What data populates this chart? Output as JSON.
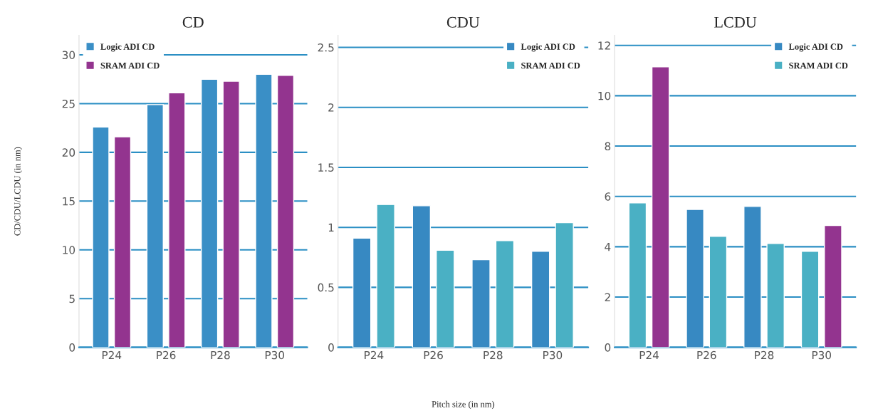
{
  "chart_data": [
    {
      "type": "bar",
      "title": "CD",
      "ylabel": "CD/CDU/LCDU (in nm)",
      "categories": [
        "P24",
        "P26",
        "P28",
        "P30"
      ],
      "series": [
        {
          "name": "Logic ADI CD",
          "color": "#3a8fc6",
          "values": [
            22.6,
            24.9,
            27.5,
            28.0
          ]
        },
        {
          "name": "SRAM ADI CD",
          "color": "#93348f",
          "values": [
            21.6,
            26.1,
            27.3,
            27.9
          ]
        }
      ],
      "ylim": [
        0,
        32
      ],
      "yticks": [
        0,
        5,
        10,
        15,
        20,
        25,
        30
      ],
      "grid": "y",
      "legend": "top left"
    },
    {
      "type": "bar",
      "title": "CDU",
      "xlabel": "Pitch size (in nm)",
      "categories": [
        "P24",
        "P26",
        "P28",
        "P30"
      ],
      "series": [
        {
          "name": "Logic ADI CD",
          "color": "#3789c2",
          "values": [
            0.91,
            1.18,
            0.73,
            0.8
          ]
        },
        {
          "name": "SRAM ADI CD",
          "color": "#4ab0c4",
          "values": [
            1.19,
            0.81,
            0.89,
            1.04
          ]
        }
      ],
      "ylim": [
        0,
        2.6
      ],
      "yticks": [
        0,
        0.5,
        1,
        1.5,
        2,
        2.5
      ],
      "grid": "y",
      "legend": "top right"
    },
    {
      "type": "bar",
      "title": "LCDU",
      "categories": [
        "P24",
        "P26",
        "P28",
        "P30"
      ],
      "series": [
        {
          "name": "Logic ADI CD",
          "color": "#3789c2",
          "colors": [
            "#4ab0c4",
            "#3789c2",
            "#3789c2",
            "#4ab0c4"
          ],
          "values": [
            5.74,
            5.48,
            5.6,
            3.82
          ]
        },
        {
          "name": "SRAM ADI CD",
          "color": "#4ab0c4",
          "colors": [
            "#93348f",
            "#4ab0c4",
            "#4ab0c4",
            "#93348f"
          ],
          "values": [
            11.15,
            4.41,
            4.13,
            4.84
          ]
        }
      ],
      "ylim": [
        0,
        12.4
      ],
      "yticks": [
        0,
        2,
        4,
        6,
        8,
        10,
        12
      ],
      "grid": "y",
      "legend": "top right"
    }
  ]
}
